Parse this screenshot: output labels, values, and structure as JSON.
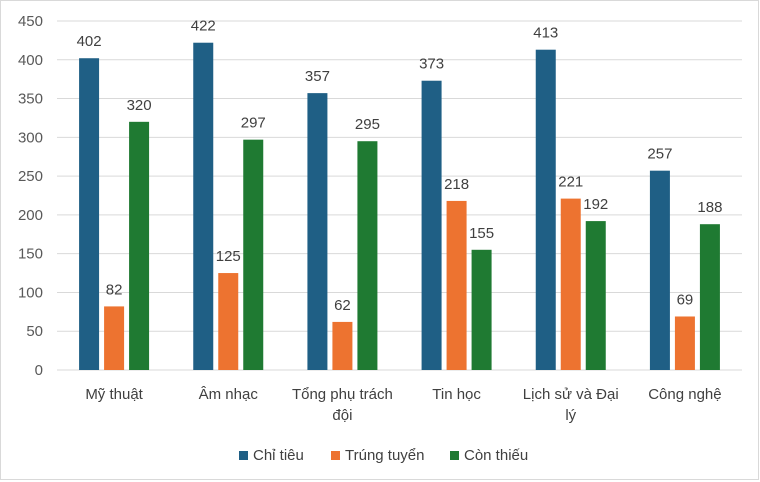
{
  "chart_data": {
    "type": "bar",
    "categories": [
      "Mỹ thuật",
      "Âm nhạc",
      "Tổng phụ trách đội",
      "Tin học",
      "Lịch sử và Đại lý",
      "Công nghệ"
    ],
    "category_lines": [
      [
        "Mỹ thuật"
      ],
      [
        "Âm nhạc"
      ],
      [
        "Tổng phụ trách",
        "đội"
      ],
      [
        "Tin học"
      ],
      [
        "Lịch sử và Đại",
        "lý"
      ],
      [
        "Công nghệ"
      ]
    ],
    "series": [
      {
        "name": "Chỉ tiêu",
        "values": [
          402,
          422,
          357,
          373,
          413,
          257
        ],
        "color": "#1f5f85"
      },
      {
        "name": "Trúng tuyển",
        "values": [
          82,
          125,
          62,
          218,
          221,
          69
        ],
        "color": "#ed7330"
      },
      {
        "name": "Còn thiếu",
        "values": [
          320,
          297,
          295,
          155,
          192,
          188
        ],
        "color": "#1f7a32"
      }
    ],
    "yticks": [
      0,
      50,
      100,
      150,
      200,
      250,
      300,
      350,
      400,
      450
    ],
    "ylim": [
      0,
      450
    ],
    "grid": true,
    "legend_position": "bottom",
    "title": "",
    "xlabel": "",
    "ylabel": ""
  }
}
